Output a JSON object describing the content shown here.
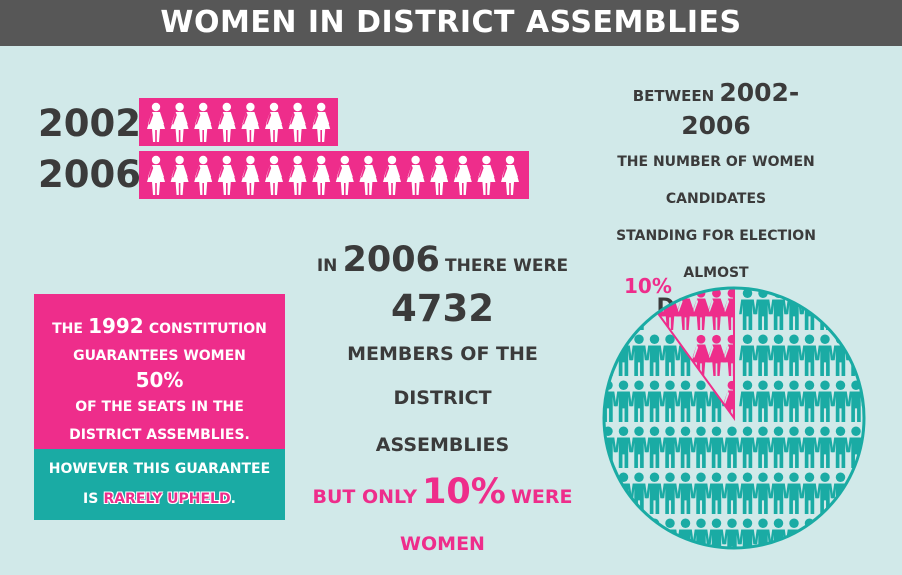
{
  "header": {
    "title": "WOMEN IN DISTRICT ASSEMBLIES"
  },
  "bar_rows": [
    {
      "year": "2002",
      "icon_count": 8
    },
    {
      "year": "2006",
      "icon_count": 16
    }
  ],
  "side_text": {
    "line1_small": "BETWEEN",
    "line1_big": "2002-2006",
    "line2": "THE NUMBER OF WOMEN CANDIDATES",
    "line3": "STANDING FOR ELECTION ALMOST",
    "line4": "DOUBLED"
  },
  "center_text": {
    "line1_a": "IN",
    "line1_year": "2006",
    "line1_b": "THERE WERE",
    "number": "4732",
    "line3": "MEMBERS OF THE DISTRICT",
    "line4": "ASSEMBLIES",
    "line5_a": "BUT ONLY",
    "line5_pct": "10%",
    "line5_b": "WERE",
    "line6": "WOMEN"
  },
  "pink_box": {
    "l1_a": "THE",
    "l1_year": "1992",
    "l1_b": "CONSTITUTION",
    "l2": "GUARANTEES WOMEN",
    "l3": "50%",
    "l4": "OF THE SEATS IN THE",
    "l5": "DISTRICT ASSEMBLIES."
  },
  "teal_box": {
    "l1": "HOWEVER THIS GUARANTEE",
    "l2_a": "IS",
    "l2_highlight": "RARELY UPHELD",
    "l2_b": "."
  },
  "pie": {
    "label": "10%",
    "women_fraction": 0.1,
    "colors": {
      "men": "#1aaba4",
      "women": "#ee2d8b"
    }
  },
  "colors": {
    "pink": "#ee2d8b",
    "teal": "#1aaba4",
    "dark": "#3b3b3b",
    "background": "#d1e9e9",
    "header": "#575757"
  }
}
